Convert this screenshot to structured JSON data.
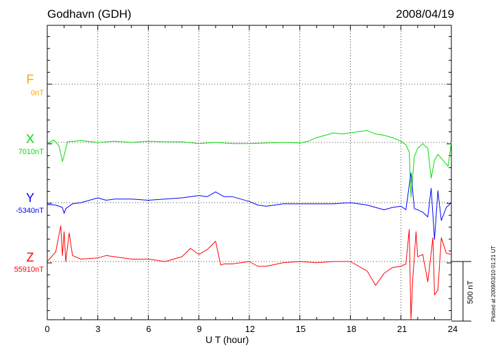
{
  "header": {
    "station": "Godhavn (GDH)",
    "date": "2008/04/19"
  },
  "channels": [
    {
      "name": "F",
      "baseline": "0nT",
      "color": "#ffa500"
    },
    {
      "name": "X",
      "baseline": "7010nT",
      "color": "#00dd00"
    },
    {
      "name": "Y",
      "baseline": "-5340nT",
      "color": "#0000ff"
    },
    {
      "name": "Z",
      "baseline": "55910nT",
      "color": "#ff0000"
    }
  ],
  "scale_bar_label": "500 nT",
  "plot_note": "Plotted at 2009/03/10 01:21 UT",
  "chart_data": {
    "type": "line",
    "xlabel": "U T (hour)",
    "xlim": [
      0,
      24
    ],
    "x_ticks": [
      "0",
      "3",
      "6",
      "9",
      "12",
      "15",
      "18",
      "21",
      "24"
    ],
    "grid": true,
    "series": [
      {
        "name": "F",
        "baseline_nT": 0,
        "color": "#ffa500",
        "x": [],
        "y": []
      },
      {
        "name": "X",
        "baseline_nT": 7010,
        "color": "#00dd00",
        "x": [
          0,
          0.4,
          0.7,
          0.9,
          1.0,
          1.2,
          2,
          3,
          4,
          5,
          6,
          7,
          8,
          9,
          10,
          11,
          12,
          13,
          14,
          15,
          15.5,
          16,
          16.5,
          17,
          17.5,
          18,
          18.5,
          19,
          19.5,
          20,
          20.5,
          21,
          21.3,
          21.5,
          21.6,
          21.8,
          22,
          22.3,
          22.6,
          22.8,
          23,
          23.2,
          23.5,
          23.8,
          24
        ],
        "y": [
          -10,
          20,
          -30,
          -160,
          -110,
          5,
          15,
          0,
          10,
          0,
          10,
          5,
          5,
          -10,
          0,
          -10,
          -10,
          -5,
          0,
          -5,
          10,
          40,
          60,
          80,
          70,
          80,
          90,
          100,
          70,
          60,
          40,
          10,
          -20,
          -80,
          -460,
          -120,
          -50,
          -10,
          -50,
          -300,
          -150,
          -100,
          -150,
          -200,
          0
        ]
      },
      {
        "name": "Y",
        "baseline_nT": -5340,
        "color": "#0000ff",
        "x": [
          0,
          0.5,
          0.9,
          1.0,
          1.1,
          1.5,
          2,
          2.5,
          3,
          3.5,
          4,
          5,
          6,
          7,
          8,
          9,
          9.5,
          10,
          10.5,
          11,
          11.5,
          12,
          12.5,
          13,
          14,
          15,
          16,
          17,
          18,
          19,
          19.5,
          20,
          20.5,
          21,
          21.3,
          21.6,
          21.8,
          22,
          22.3,
          22.6,
          22.8,
          23,
          23.2,
          23.4,
          23.7,
          24
        ],
        "y": [
          -15,
          -20,
          -40,
          -90,
          -50,
          -10,
          0,
          20,
          40,
          20,
          30,
          30,
          20,
          30,
          40,
          60,
          50,
          90,
          50,
          50,
          30,
          10,
          -20,
          -30,
          -10,
          -10,
          -10,
          -10,
          0,
          -20,
          -40,
          -60,
          -40,
          -30,
          -60,
          250,
          -50,
          -60,
          -80,
          -120,
          120,
          -310,
          100,
          -150,
          -40,
          0
        ]
      },
      {
        "name": "Z",
        "baseline_nT": 55910,
        "color": "#ff0000",
        "x": [
          0,
          0.5,
          0.8,
          0.9,
          1.0,
          1.1,
          1.3,
          1.5,
          2,
          3,
          3.5,
          4,
          5,
          6,
          7,
          8,
          8.5,
          9,
          9.5,
          10,
          10.3,
          10.5,
          11,
          12,
          12.5,
          13,
          14,
          15,
          16,
          17,
          18,
          19,
          19.5,
          20,
          20.5,
          21,
          21.3,
          21.5,
          21.6,
          21.7,
          21.9,
          22,
          22.3,
          22.6,
          22.9,
          23,
          23.2,
          23.4,
          23.7,
          24
        ],
        "y": [
          0,
          80,
          300,
          50,
          250,
          0,
          240,
          50,
          20,
          30,
          50,
          40,
          20,
          20,
          0,
          40,
          110,
          60,
          100,
          170,
          -30,
          -20,
          -20,
          0,
          -40,
          -40,
          -10,
          0,
          -10,
          0,
          0,
          -80,
          -200,
          -100,
          -50,
          -40,
          -20,
          270,
          -540,
          -160,
          250,
          40,
          60,
          -170,
          200,
          -280,
          -240,
          200,
          70,
          60
        ]
      }
    ]
  }
}
